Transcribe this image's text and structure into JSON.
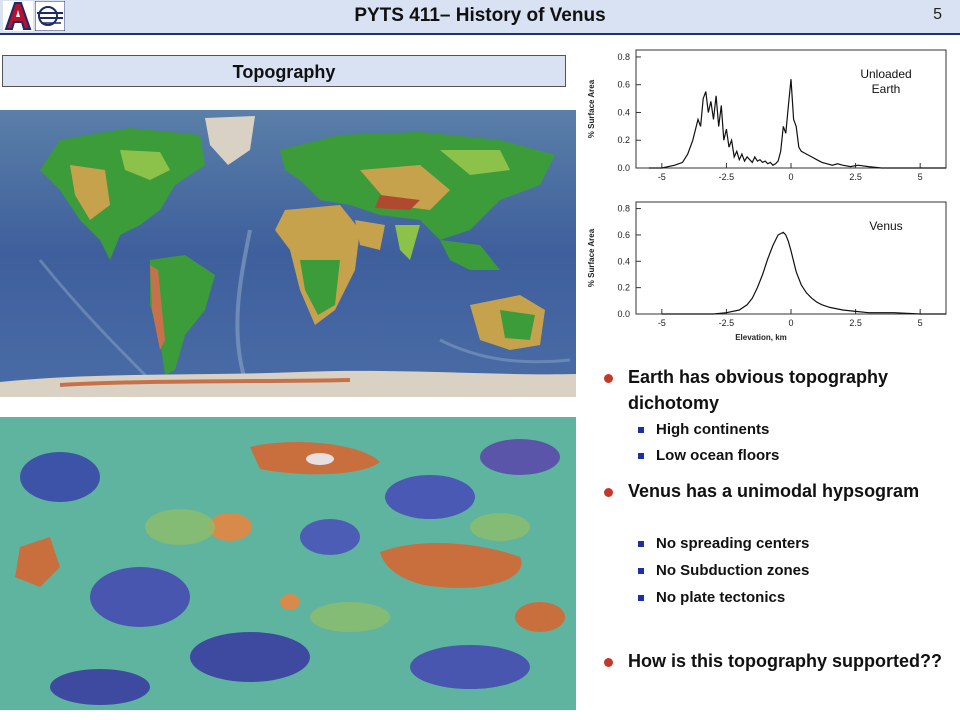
{
  "header": {
    "title": "PYTS 411– History of Venus",
    "page_number": "5",
    "bg_color": "#d9e2f2",
    "logo_icons": [
      "university-of-arizona-logo",
      "lunar-planetary-lab-logo"
    ]
  },
  "section": {
    "title": "Topography"
  },
  "images": {
    "earth_map": "earth-topography-map",
    "venus_map": "venus-topography-map"
  },
  "charts": {
    "earth_label_line1": "Unloaded",
    "earth_label_line2": "Earth",
    "venus_label": "Venus",
    "ylabel": "% Surface Area",
    "xlabel": "Elevation, km",
    "y_ticks": [
      "0.8",
      "0.6",
      "0.4",
      "0.2",
      "0.0"
    ],
    "x_ticks": [
      "-5",
      "-2.5",
      "0",
      "2.5",
      "5"
    ]
  },
  "chart_data": [
    {
      "type": "line",
      "title": "",
      "series": [
        {
          "name": "Unloaded Earth",
          "x": [
            -5.5,
            -5,
            -4.5,
            -4.2,
            -4,
            -3.8,
            -3.6,
            -3.5,
            -3.4,
            -3.3,
            -3.2,
            -3.1,
            -3,
            -2.9,
            -2.8,
            -2.7,
            -2.6,
            -2.5,
            -2.4,
            -2.3,
            -2.2,
            -2.1,
            -2,
            -1.9,
            -1.8,
            -1.7,
            -1.6,
            -1.5,
            -1.4,
            -1.3,
            -1.2,
            -1.1,
            -1,
            -0.9,
            -0.8,
            -0.7,
            -0.6,
            -0.5,
            -0.4,
            -0.3,
            -0.2,
            -0.1,
            0,
            0.1,
            0.2,
            0.3,
            0.4,
            0.6,
            0.8,
            1.0,
            1.2,
            1.4,
            1.6,
            1.8,
            2.0,
            2.3,
            2.6,
            3,
            3.5,
            4,
            6
          ],
          "y": [
            0,
            0,
            0.02,
            0.04,
            0.1,
            0.2,
            0.35,
            0.3,
            0.5,
            0.55,
            0.4,
            0.48,
            0.35,
            0.52,
            0.3,
            0.45,
            0.2,
            0.28,
            0.15,
            0.2,
            0.08,
            0.12,
            0.06,
            0.1,
            0.05,
            0.08,
            0.06,
            0.04,
            0.08,
            0.05,
            0.06,
            0.04,
            0.05,
            0.03,
            0.04,
            0.02,
            0.03,
            0.05,
            0.12,
            0.3,
            0.25,
            0.45,
            0.64,
            0.35,
            0.3,
            0.15,
            0.12,
            0.1,
            0.08,
            0.06,
            0.04,
            0.03,
            0.02,
            0.03,
            0.02,
            0.01,
            0.02,
            0.01,
            0,
            0,
            0
          ]
        }
      ],
      "xlim": [
        -6,
        6
      ],
      "ylim": [
        0,
        0.85
      ],
      "ylabel": "% Surface Area",
      "xlabel": "",
      "grid": false,
      "annotation": "Unloaded Earth"
    },
    {
      "type": "line",
      "title": "",
      "series": [
        {
          "name": "Venus",
          "x": [
            -5,
            -3,
            -2.5,
            -2,
            -1.7,
            -1.5,
            -1.3,
            -1.1,
            -0.9,
            -0.7,
            -0.5,
            -0.3,
            -0.2,
            -0.1,
            0,
            0.1,
            0.2,
            0.4,
            0.6,
            0.8,
            1.0,
            1.2,
            1.5,
            2,
            2.5,
            3,
            4,
            5,
            6
          ],
          "y": [
            0,
            0,
            0.01,
            0.03,
            0.07,
            0.12,
            0.2,
            0.3,
            0.42,
            0.52,
            0.6,
            0.62,
            0.6,
            0.55,
            0.48,
            0.4,
            0.32,
            0.22,
            0.16,
            0.12,
            0.09,
            0.07,
            0.05,
            0.03,
            0.02,
            0.01,
            0.01,
            0,
            0
          ]
        }
      ],
      "xlim": [
        -6,
        6
      ],
      "ylim": [
        0,
        0.85
      ],
      "ylabel": "% Surface Area",
      "xlabel": "Elevation, km",
      "grid": false,
      "annotation": "Venus"
    }
  ],
  "bullets": [
    {
      "text": "Earth has obvious topography dichotomy",
      "subs": [
        "High continents",
        "Low ocean floors"
      ]
    },
    {
      "text": "Venus has a unimodal hypsogram",
      "subs": [
        "No spreading centers",
        "No Subduction zones",
        "No plate tectonics"
      ]
    },
    {
      "text": "How is this topography supported??",
      "subs": []
    }
  ],
  "colors": {
    "bullet": "#c0392b",
    "sub_bullet": "#1d2fa6",
    "header_rule": "#1f2f7a"
  }
}
